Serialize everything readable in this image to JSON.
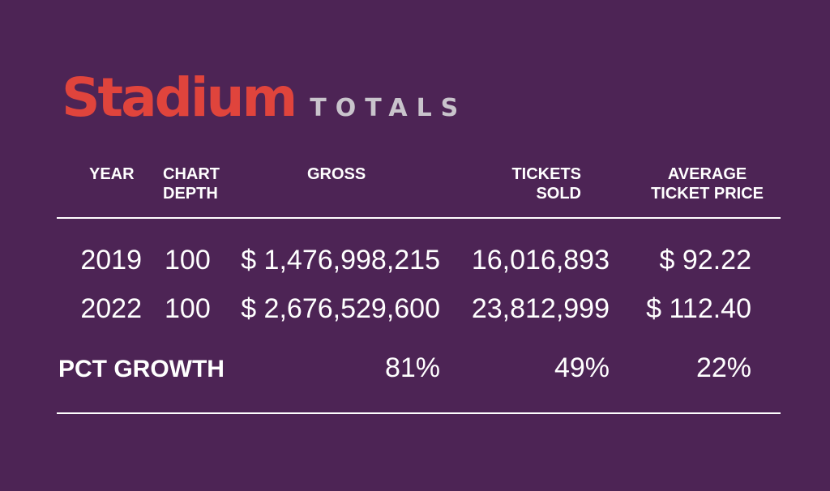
{
  "title": {
    "main": "Stadium",
    "sub": "TOTALS"
  },
  "colors": {
    "background": "#4d2455",
    "title_red": "#e0443c",
    "subtitle_gray": "#c9c4cc",
    "text": "#ffffff"
  },
  "chart_data": {
    "type": "table",
    "title": "Stadium TOTALS",
    "columns": [
      {
        "key": "year",
        "lines": [
          "YEAR"
        ]
      },
      {
        "key": "chart_depth",
        "lines": [
          "CHART",
          "DEPTH"
        ]
      },
      {
        "key": "gross",
        "lines": [
          "GROSS"
        ]
      },
      {
        "key": "tickets_sold",
        "lines": [
          "TICKETS",
          "SOLD"
        ]
      },
      {
        "key": "avg_price",
        "lines": [
          "AVERAGE",
          "TICKET PRICE"
        ]
      }
    ],
    "rows": [
      {
        "year": "2019",
        "chart_depth": "100",
        "gross": "$ 1,476,998,215",
        "tickets_sold": "16,016,893",
        "avg_price": "$ 92.22"
      },
      {
        "year": "2022",
        "chart_depth": "100",
        "gross": "$ 2,676,529,600",
        "tickets_sold": "23,812,999",
        "avg_price": "$ 112.40"
      }
    ],
    "growth": {
      "label": "PCT GROWTH",
      "gross": "81%",
      "tickets_sold": "49%",
      "avg_price": "22%"
    }
  }
}
